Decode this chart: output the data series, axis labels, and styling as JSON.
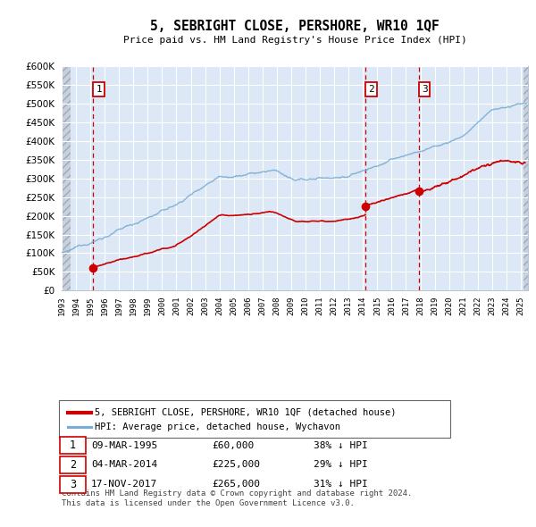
{
  "title": "5, SEBRIGHT CLOSE, PERSHORE, WR10 1QF",
  "subtitle": "Price paid vs. HM Land Registry's House Price Index (HPI)",
  "ylim": [
    0,
    600000
  ],
  "yticks": [
    0,
    50000,
    100000,
    150000,
    200000,
    250000,
    300000,
    350000,
    400000,
    450000,
    500000,
    550000,
    600000
  ],
  "xlim_start": 1993.0,
  "xlim_end": 2025.5,
  "transactions": [
    {
      "date_num": 1995.18,
      "price": 60000,
      "label": "1"
    },
    {
      "date_num": 2014.17,
      "price": 225000,
      "label": "2"
    },
    {
      "date_num": 2017.88,
      "price": 265000,
      "label": "3"
    }
  ],
  "legend_items": [
    {
      "label": "5, SEBRIGHT CLOSE, PERSHORE, WR10 1QF (detached house)",
      "color": "#cc0000",
      "lw": 2.0
    },
    {
      "label": "HPI: Average price, detached house, Wychavon",
      "color": "#7aadd4",
      "lw": 1.5
    }
  ],
  "table_rows": [
    {
      "num": "1",
      "date": "09-MAR-1995",
      "price": "£60,000",
      "hpi": "38% ↓ HPI"
    },
    {
      "num": "2",
      "date": "04-MAR-2014",
      "price": "£225,000",
      "hpi": "29% ↓ HPI"
    },
    {
      "num": "3",
      "date": "17-NOV-2017",
      "price": "£265,000",
      "hpi": "31% ↓ HPI"
    }
  ],
  "footer": "Contains HM Land Registry data © Crown copyright and database right 2024.\nThis data is licensed under the Open Government Licence v3.0.",
  "plot_bg": "#dce8f5",
  "grid_color": "#ffffff",
  "vline_color": "#cc0000",
  "hatch_color": "#b0b8c8"
}
